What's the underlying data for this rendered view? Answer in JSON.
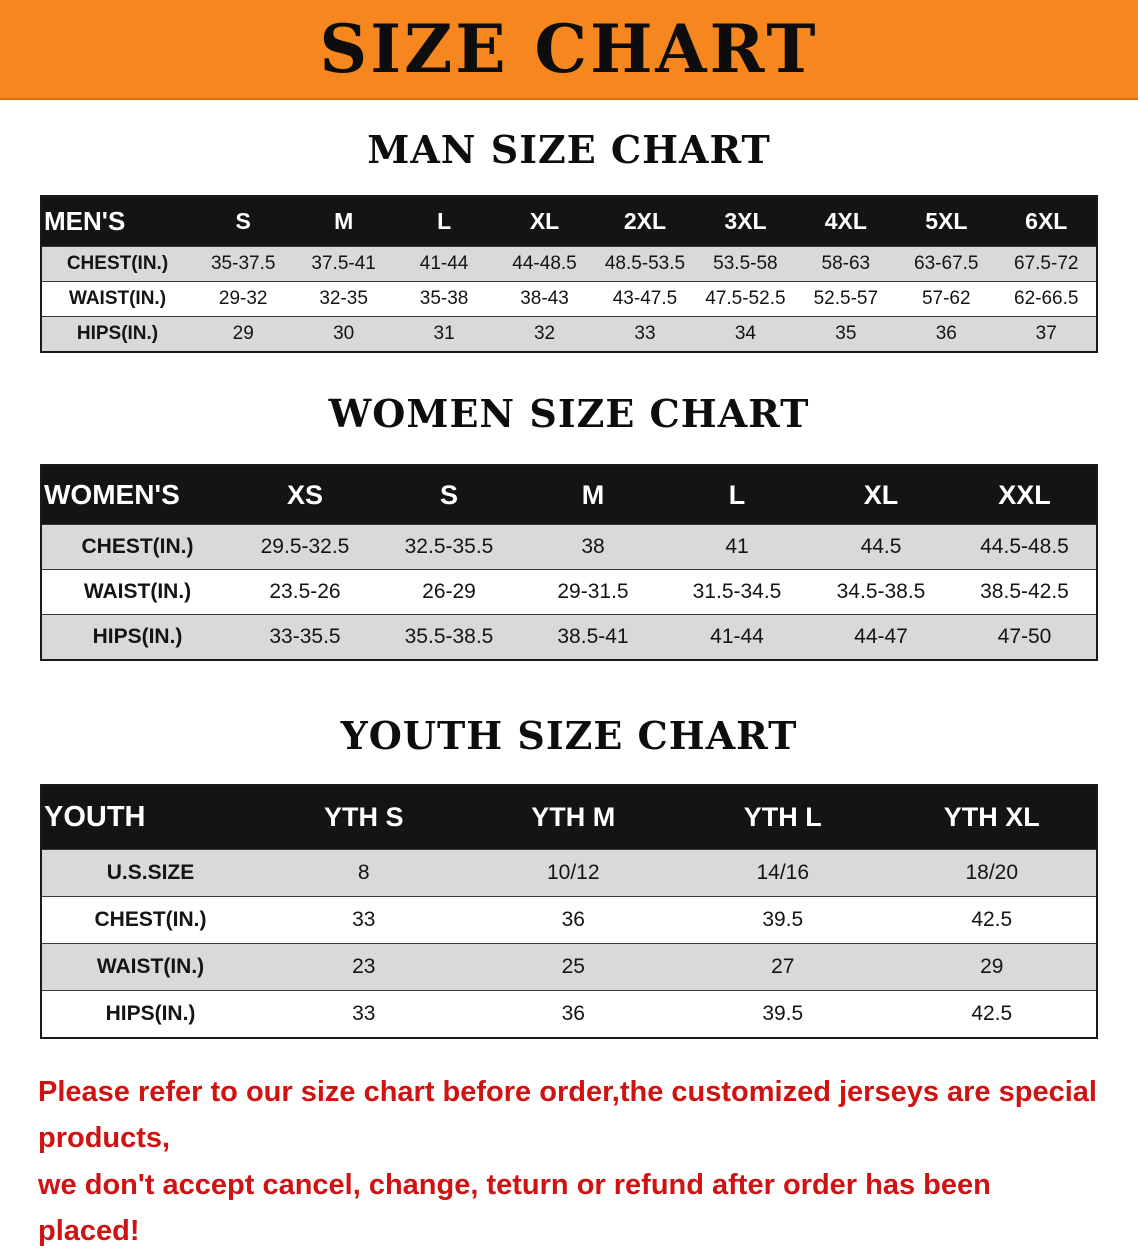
{
  "banner": {
    "title": "SIZE CHART",
    "bg_color": "#f6871f"
  },
  "sections": [
    {
      "key": "mens",
      "heading": "MAN SIZE CHART",
      "table": {
        "header_label": "MEN'S",
        "columns": [
          "S",
          "M",
          "L",
          "XL",
          "2XL",
          "3XL",
          "4XL",
          "5XL",
          "6XL"
        ],
        "rows": [
          {
            "label": "CHEST(IN.)",
            "values": [
              "35-37.5",
              "37.5-41",
              "41-44",
              "44-48.5",
              "48.5-53.5",
              "53.5-58",
              "58-63",
              "63-67.5",
              "67.5-72"
            ]
          },
          {
            "label": "WAIST(IN.)",
            "values": [
              "29-32",
              "32-35",
              "35-38",
              "38-43",
              "43-47.5",
              "47.5-52.5",
              "52.5-57",
              "57-62",
              "62-66.5"
            ]
          },
          {
            "label": "HIPS(IN.)",
            "values": [
              "29",
              "30",
              "31",
              "32",
              "33",
              "34",
              "35",
              "36",
              "37"
            ]
          }
        ]
      }
    },
    {
      "key": "womens",
      "heading": "WOMEN SIZE CHART",
      "table": {
        "header_label": "WOMEN'S",
        "columns": [
          "XS",
          "S",
          "M",
          "L",
          "XL",
          "XXL"
        ],
        "rows": [
          {
            "label": "CHEST(IN.)",
            "values": [
              "29.5-32.5",
              "32.5-35.5",
              "38",
              "41",
              "44.5",
              "44.5-48.5"
            ]
          },
          {
            "label": "WAIST(IN.)",
            "values": [
              "23.5-26",
              "26-29",
              "29-31.5",
              "31.5-34.5",
              "34.5-38.5",
              "38.5-42.5"
            ]
          },
          {
            "label": "HIPS(IN.)",
            "values": [
              "33-35.5",
              "35.5-38.5",
              "38.5-41",
              "41-44",
              "44-47",
              "47-50"
            ]
          }
        ]
      }
    },
    {
      "key": "youth",
      "heading": "YOUTH SIZE CHART",
      "table": {
        "header_label": "YOUTH",
        "columns": [
          "YTH S",
          "YTH M",
          "YTH L",
          "YTH XL"
        ],
        "rows": [
          {
            "label": "U.S.SIZE",
            "values": [
              "8",
              "10/12",
              "14/16",
              "18/20"
            ]
          },
          {
            "label": "CHEST(IN.)",
            "values": [
              "33",
              "36",
              "39.5",
              "42.5"
            ]
          },
          {
            "label": "WAIST(IN.)",
            "values": [
              "23",
              "25",
              "27",
              "29"
            ]
          },
          {
            "label": "HIPS(IN.)",
            "values": [
              "33",
              "36",
              "39.5",
              "42.5"
            ]
          }
        ]
      }
    }
  ],
  "footer": {
    "text_color": "#cf1212",
    "lines": [
      "Please refer to our size chart before order,the customized jerseys are special products,",
      "we don't accept cancel, change, teturn or refund after order has been placed!"
    ]
  }
}
